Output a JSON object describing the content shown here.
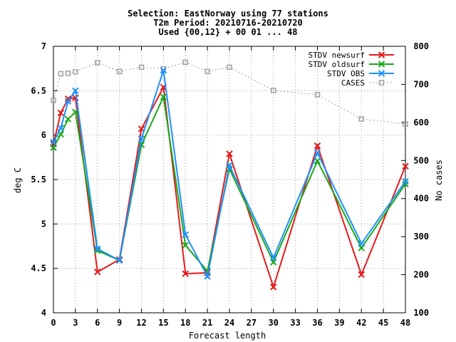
{
  "chart_data": {
    "type": "line",
    "title_lines": [
      "Selection: EastNorway using    77 stations",
      "T2m   Period: 20210716-20210720",
      "Used {00,12} + 00 01 ... 48"
    ],
    "xlabel": "Forecast length",
    "ylabel": "deg C",
    "y2label": "No cases",
    "xlim": [
      0,
      48
    ],
    "ylim": [
      4,
      7
    ],
    "y2lim": [
      100,
      800
    ],
    "x_ticks": [
      0,
      3,
      6,
      9,
      12,
      15,
      18,
      21,
      24,
      27,
      30,
      33,
      36,
      39,
      42,
      45,
      48
    ],
    "y_ticks": [
      4,
      4.5,
      5,
      5.5,
      6,
      6.5,
      7
    ],
    "y2_ticks": [
      100,
      200,
      300,
      400,
      500,
      600,
      700,
      800
    ],
    "grid": true,
    "legend_position": "top-right",
    "x": [
      0,
      1,
      2,
      3,
      6,
      9,
      12,
      15,
      18,
      21,
      24,
      30,
      36,
      42,
      48
    ],
    "series": [
      {
        "name": "STDV newsurf",
        "axis": "left",
        "color": "#e41a1c",
        "marker": "x",
        "values": [
          5.9,
          6.25,
          6.41,
          6.42,
          4.46,
          4.6,
          6.07,
          6.54,
          4.44,
          4.45,
          5.79,
          4.29,
          5.88,
          4.43,
          5.65
        ]
      },
      {
        "name": "STDV oldsurf",
        "axis": "left",
        "color": "#1aa81a",
        "marker": "x",
        "values": [
          5.86,
          6.01,
          6.18,
          6.26,
          4.7,
          4.59,
          5.89,
          6.43,
          4.76,
          4.47,
          5.62,
          4.57,
          5.71,
          4.73,
          5.45
        ]
      },
      {
        "name": "STDV OBS",
        "axis": "left",
        "color": "#1e90ff",
        "marker": "x",
        "values": [
          5.92,
          6.08,
          6.38,
          6.5,
          4.72,
          4.59,
          5.96,
          6.73,
          4.88,
          4.41,
          5.66,
          4.62,
          5.8,
          4.78,
          5.48
        ]
      },
      {
        "name": "CASES",
        "axis": "right",
        "color": "#a0a0a0",
        "marker": "square",
        "dashed": true,
        "values": [
          658,
          728,
          729,
          733,
          757,
          734,
          745,
          741,
          758,
          734,
          745,
          684,
          673,
          609,
          596
        ]
      }
    ]
  }
}
